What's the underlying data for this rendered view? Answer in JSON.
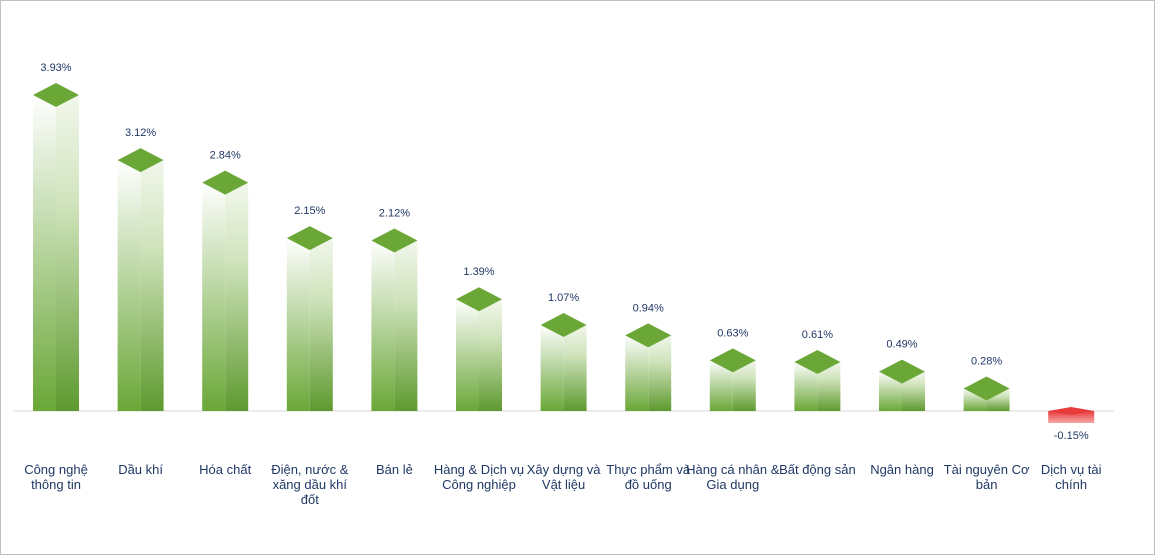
{
  "chart_data": {
    "type": "bar",
    "title": "",
    "xlabel": "",
    "ylabel": "",
    "categories": [
      "Công nghệ thông tin",
      "Dầu khí",
      "Hóa chất",
      "Điện, nước & xăng dầu khí đốt",
      "Bán lẻ",
      "Hàng & Dịch vụ Công nghiệp",
      "Xây dựng và Vật liệu",
      "Thực phẩm và đồ uống",
      "Hàng cá nhân & Gia dụng",
      "Bất động sản",
      "Ngân hàng",
      "Tài nguyên Cơ bản",
      "Dịch vụ tài chính"
    ],
    "series": [
      {
        "values": [
          3.93,
          3.12,
          2.84,
          2.15,
          2.12,
          1.39,
          1.07,
          0.94,
          0.63,
          0.61,
          0.49,
          0.28,
          -0.15
        ]
      }
    ],
    "data_labels": [
      "3.93%",
      "3.12%",
      "2.84%",
      "2.15%",
      "2.12%",
      "1.39%",
      "1.07%",
      "0.94%",
      "0.63%",
      "0.61%",
      "0.49%",
      "0.28%",
      "-0.15%"
    ],
    "unit": "%",
    "grid": false,
    "legend": "none",
    "colors": {
      "positive_top": "#6aa737",
      "positive_dark": "#5e9a2f",
      "positive_light": "#ffffff",
      "negative": "#e83b3b",
      "label_text": "#1f3864",
      "axis": "#d9d9d9"
    }
  }
}
